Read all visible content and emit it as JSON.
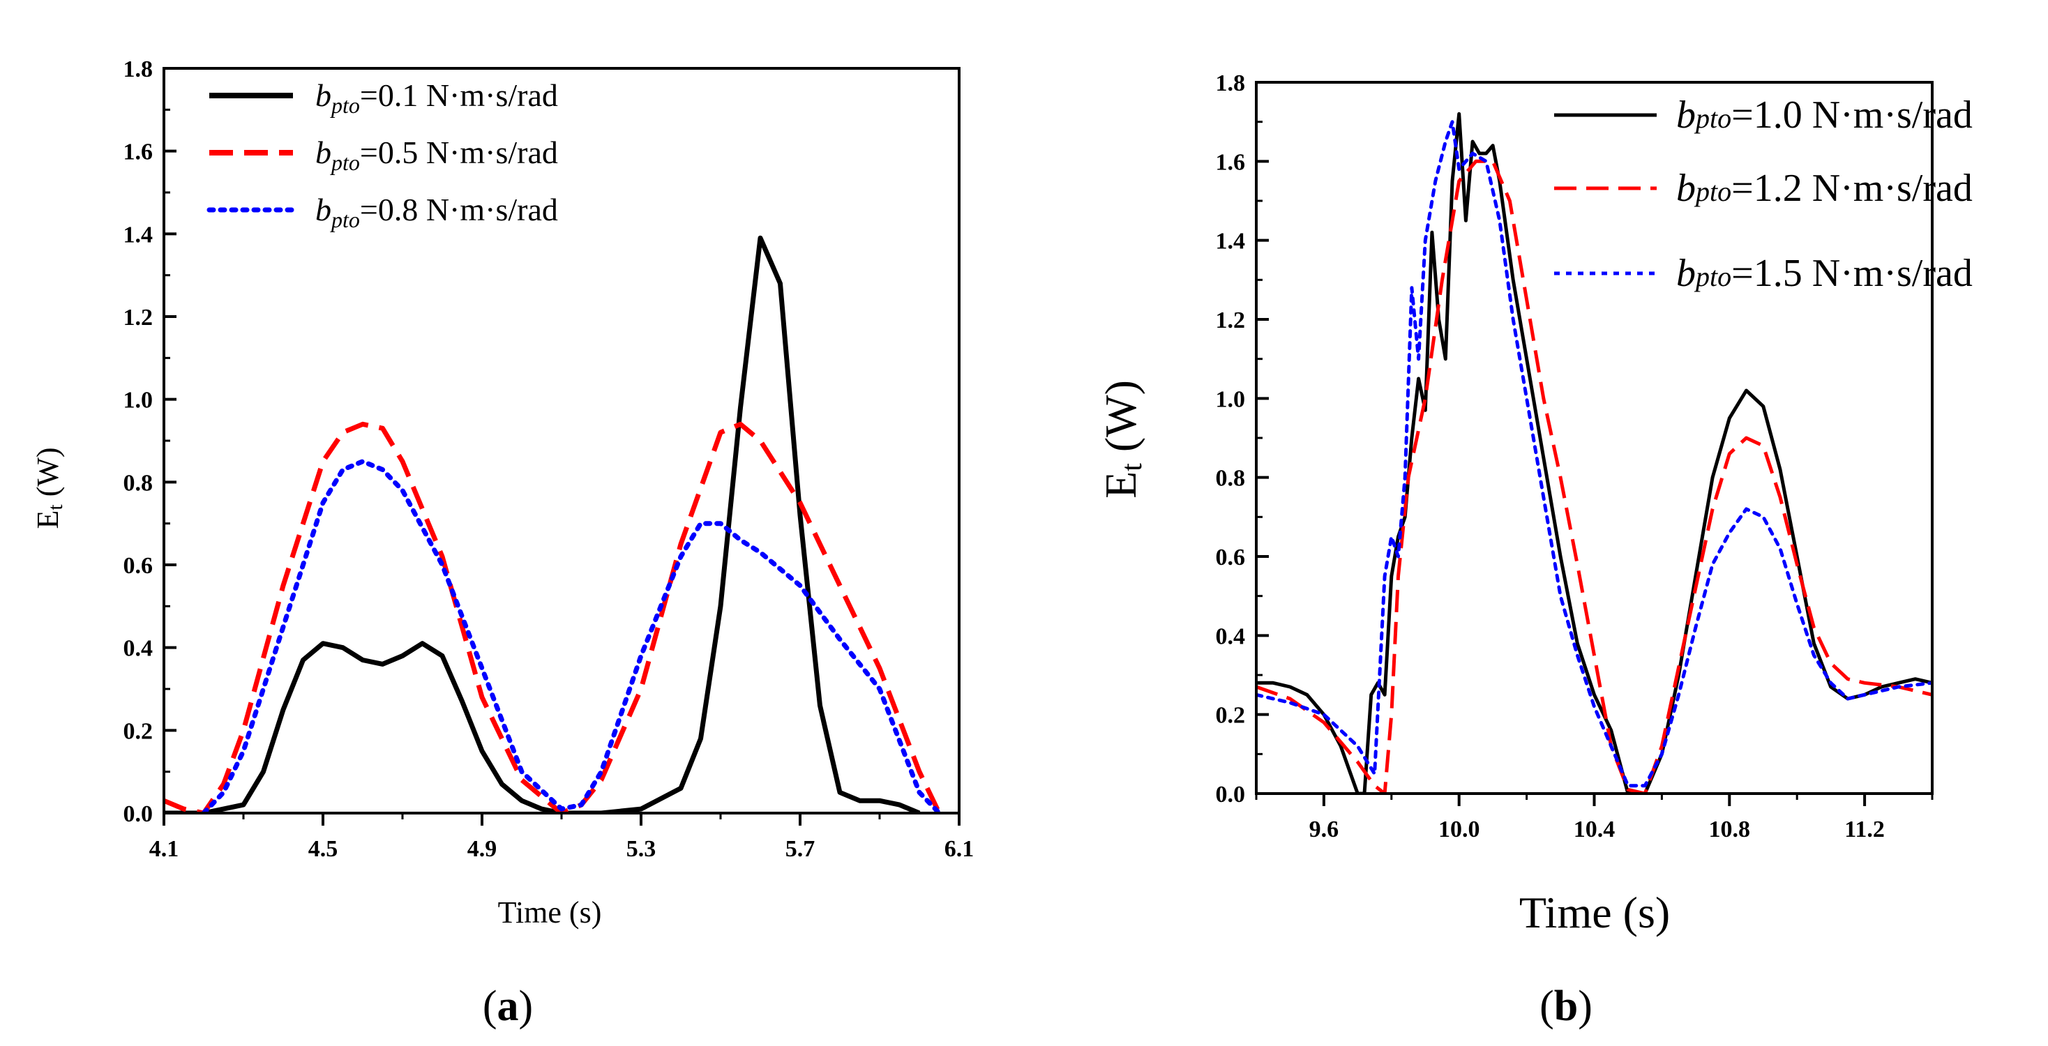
{
  "chart_data": [
    {
      "type": "line",
      "panel_label": "a",
      "xlabel": "Time (s)",
      "ylabel": "Et (W)",
      "ylabel_main": "E",
      "ylabel_sub": "t",
      "ylabel_rest": " (W)",
      "xlim": [
        4.1,
        6.1
      ],
      "ylim": [
        0,
        1.8
      ],
      "xticks": [
        4.1,
        4.5,
        4.9,
        5.3,
        5.7,
        6.1
      ],
      "xtick_labels": [
        "4.1",
        "4.5",
        "4.9",
        "5.3",
        "5.7",
        "6.1"
      ],
      "yticks": [
        0,
        0.2,
        0.4,
        0.6,
        0.8,
        1.0,
        1.2,
        1.4,
        1.6,
        1.8
      ],
      "ytick_labels": [
        "0.0",
        "0.2",
        "0.4",
        "0.6",
        "0.8",
        "1.0",
        "1.2",
        "1.4",
        "1.6",
        "1.8"
      ],
      "grid": false,
      "legend_position": "top-left",
      "series": [
        {
          "name": "bpto=0.1 N·m·s/rad",
          "name_main": "b",
          "name_sub": "pto",
          "name_rest": "=0.1 N·m·s/rad",
          "color": "#000000",
          "style": "solid",
          "points": [
            [
              4.1,
              0.0
            ],
            [
              4.2,
              0.0
            ],
            [
              4.3,
              0.02
            ],
            [
              4.35,
              0.1
            ],
            [
              4.4,
              0.25
            ],
            [
              4.45,
              0.37
            ],
            [
              4.5,
              0.41
            ],
            [
              4.55,
              0.4
            ],
            [
              4.6,
              0.37
            ],
            [
              4.65,
              0.36
            ],
            [
              4.7,
              0.38
            ],
            [
              4.75,
              0.41
            ],
            [
              4.8,
              0.38
            ],
            [
              4.85,
              0.27
            ],
            [
              4.9,
              0.15
            ],
            [
              4.95,
              0.07
            ],
            [
              5.0,
              0.03
            ],
            [
              5.05,
              0.01
            ],
            [
              5.1,
              0.0
            ],
            [
              5.2,
              0.0
            ],
            [
              5.3,
              0.01
            ],
            [
              5.4,
              0.06
            ],
            [
              5.45,
              0.18
            ],
            [
              5.5,
              0.5
            ],
            [
              5.55,
              0.98
            ],
            [
              5.6,
              1.39
            ],
            [
              5.65,
              1.28
            ],
            [
              5.7,
              0.72
            ],
            [
              5.75,
              0.26
            ],
            [
              5.8,
              0.05
            ],
            [
              5.85,
              0.03
            ],
            [
              5.9,
              0.03
            ],
            [
              5.95,
              0.02
            ],
            [
              6.0,
              0.0
            ]
          ]
        },
        {
          "name": "bpto=0.5 N·m·s/rad",
          "name_main": "b",
          "name_sub": "pto",
          "name_rest": "=0.5 N·m·s/rad",
          "color": "#ff0000",
          "style": "dashed",
          "points": [
            [
              4.1,
              0.03
            ],
            [
              4.15,
              0.01
            ],
            [
              4.2,
              0.0
            ],
            [
              4.25,
              0.07
            ],
            [
              4.3,
              0.2
            ],
            [
              4.4,
              0.55
            ],
            [
              4.5,
              0.85
            ],
            [
              4.55,
              0.92
            ],
            [
              4.6,
              0.94
            ],
            [
              4.65,
              0.93
            ],
            [
              4.7,
              0.85
            ],
            [
              4.8,
              0.62
            ],
            [
              4.9,
              0.28
            ],
            [
              5.0,
              0.08
            ],
            [
              5.1,
              0.0
            ],
            [
              5.15,
              0.02
            ],
            [
              5.2,
              0.08
            ],
            [
              5.3,
              0.3
            ],
            [
              5.4,
              0.65
            ],
            [
              5.5,
              0.92
            ],
            [
              5.55,
              0.94
            ],
            [
              5.6,
              0.9
            ],
            [
              5.7,
              0.75
            ],
            [
              5.8,
              0.55
            ],
            [
              5.9,
              0.35
            ],
            [
              6.0,
              0.1
            ],
            [
              6.05,
              0.0
            ]
          ]
        },
        {
          "name": "bpto=0.8 N·m·s/rad",
          "name_main": "b",
          "name_sub": "pto",
          "name_rest": "=0.8 N·m·s/rad",
          "color": "#0000ff",
          "style": "dotted",
          "points": [
            [
              4.2,
              0.0
            ],
            [
              4.25,
              0.05
            ],
            [
              4.3,
              0.15
            ],
            [
              4.4,
              0.45
            ],
            [
              4.5,
              0.75
            ],
            [
              4.55,
              0.83
            ],
            [
              4.6,
              0.85
            ],
            [
              4.65,
              0.83
            ],
            [
              4.7,
              0.78
            ],
            [
              4.8,
              0.6
            ],
            [
              4.9,
              0.35
            ],
            [
              5.0,
              0.1
            ],
            [
              5.1,
              0.01
            ],
            [
              5.15,
              0.02
            ],
            [
              5.2,
              0.1
            ],
            [
              5.3,
              0.38
            ],
            [
              5.4,
              0.62
            ],
            [
              5.45,
              0.7
            ],
            [
              5.5,
              0.7
            ],
            [
              5.55,
              0.66
            ],
            [
              5.6,
              0.63
            ],
            [
              5.7,
              0.55
            ],
            [
              5.8,
              0.42
            ],
            [
              5.9,
              0.3
            ],
            [
              6.0,
              0.05
            ],
            [
              6.05,
              0.0
            ]
          ]
        }
      ]
    },
    {
      "type": "line",
      "panel_label": "b",
      "xlabel": "Time (s)",
      "ylabel": "Et (W)",
      "ylabel_main": "E",
      "ylabel_sub": "t",
      "ylabel_rest": " (W)",
      "xlim": [
        9.4,
        11.4
      ],
      "ylim": [
        0,
        1.8
      ],
      "xticks": [
        9.6,
        10.0,
        10.4,
        10.8,
        11.2
      ],
      "xtick_labels": [
        "9.6",
        "10.0",
        "10.4",
        "10.8",
        "11.2"
      ],
      "yticks": [
        0,
        0.2,
        0.4,
        0.6,
        0.8,
        1.0,
        1.2,
        1.4,
        1.6,
        1.8
      ],
      "ytick_labels": [
        "0.0",
        "0.2",
        "0.4",
        "0.6",
        "0.8",
        "1.0",
        "1.2",
        "1.4",
        "1.6",
        "1.8"
      ],
      "grid": false,
      "legend_position": "top-right",
      "series": [
        {
          "name": "bpto=1.0 N·m·s/rad",
          "name_main": "b",
          "name_sub": "pto",
          "name_rest": "=1.0 N·m·s/rad",
          "color": "#000000",
          "style": "solid",
          "points": [
            [
              9.4,
              0.28
            ],
            [
              9.45,
              0.28
            ],
            [
              9.5,
              0.27
            ],
            [
              9.55,
              0.25
            ],
            [
              9.6,
              0.2
            ],
            [
              9.65,
              0.12
            ],
            [
              9.7,
              0.0
            ],
            [
              9.72,
              0.0
            ],
            [
              9.74,
              0.25
            ],
            [
              9.76,
              0.28
            ],
            [
              9.78,
              0.25
            ],
            [
              9.8,
              0.55
            ],
            [
              9.82,
              0.65
            ],
            [
              9.84,
              0.7
            ],
            [
              9.86,
              0.9
            ],
            [
              9.88,
              1.05
            ],
            [
              9.9,
              0.97
            ],
            [
              9.92,
              1.42
            ],
            [
              9.94,
              1.2
            ],
            [
              9.96,
              1.1
            ],
            [
              9.98,
              1.55
            ],
            [
              10.0,
              1.72
            ],
            [
              10.02,
              1.45
            ],
            [
              10.04,
              1.65
            ],
            [
              10.06,
              1.62
            ],
            [
              10.08,
              1.62
            ],
            [
              10.1,
              1.64
            ],
            [
              10.12,
              1.55
            ],
            [
              10.16,
              1.3
            ],
            [
              10.2,
              1.1
            ],
            [
              10.25,
              0.85
            ],
            [
              10.3,
              0.6
            ],
            [
              10.35,
              0.38
            ],
            [
              10.4,
              0.25
            ],
            [
              10.45,
              0.16
            ],
            [
              10.5,
              0.0
            ],
            [
              10.55,
              0.0
            ],
            [
              10.6,
              0.1
            ],
            [
              10.65,
              0.3
            ],
            [
              10.7,
              0.55
            ],
            [
              10.75,
              0.8
            ],
            [
              10.8,
              0.95
            ],
            [
              10.85,
              1.02
            ],
            [
              10.9,
              0.98
            ],
            [
              10.95,
              0.82
            ],
            [
              11.0,
              0.6
            ],
            [
              11.05,
              0.38
            ],
            [
              11.1,
              0.27
            ],
            [
              11.15,
              0.24
            ],
            [
              11.2,
              0.25
            ],
            [
              11.25,
              0.27
            ],
            [
              11.3,
              0.28
            ],
            [
              11.35,
              0.29
            ],
            [
              11.4,
              0.28
            ]
          ]
        },
        {
          "name": "bpto=1.2 N·m·s/rad",
          "name_main": "b",
          "name_sub": "pto",
          "name_rest": "=1.2 N·m·s/rad",
          "color": "#ff0000",
          "style": "dashed",
          "points": [
            [
              9.4,
              0.27
            ],
            [
              9.5,
              0.24
            ],
            [
              9.6,
              0.18
            ],
            [
              9.65,
              0.13
            ],
            [
              9.7,
              0.08
            ],
            [
              9.75,
              0.02
            ],
            [
              9.78,
              0.0
            ],
            [
              9.8,
              0.2
            ],
            [
              9.82,
              0.55
            ],
            [
              9.85,
              0.8
            ],
            [
              9.9,
              1.0
            ],
            [
              9.95,
              1.3
            ],
            [
              10.0,
              1.55
            ],
            [
              10.05,
              1.6
            ],
            [
              10.1,
              1.6
            ],
            [
              10.15,
              1.5
            ],
            [
              10.2,
              1.25
            ],
            [
              10.25,
              1.0
            ],
            [
              10.3,
              0.8
            ],
            [
              10.35,
              0.58
            ],
            [
              10.4,
              0.35
            ],
            [
              10.45,
              0.12
            ],
            [
              10.5,
              0.01
            ],
            [
              10.55,
              0.0
            ],
            [
              10.6,
              0.12
            ],
            [
              10.65,
              0.32
            ],
            [
              10.7,
              0.52
            ],
            [
              10.75,
              0.72
            ],
            [
              10.8,
              0.86
            ],
            [
              10.85,
              0.9
            ],
            [
              10.9,
              0.88
            ],
            [
              10.95,
              0.75
            ],
            [
              11.0,
              0.58
            ],
            [
              11.05,
              0.42
            ],
            [
              11.1,
              0.33
            ],
            [
              11.15,
              0.29
            ],
            [
              11.2,
              0.28
            ],
            [
              11.3,
              0.27
            ],
            [
              11.4,
              0.25
            ]
          ]
        },
        {
          "name": "bpto=1.5 N·m·s/rad",
          "name_main": "b",
          "name_sub": "pto",
          "name_rest": "=1.5 N·m·s/rad",
          "color": "#0000ff",
          "style": "dotted",
          "points": [
            [
              9.4,
              0.25
            ],
            [
              9.5,
              0.23
            ],
            [
              9.6,
              0.2
            ],
            [
              9.65,
              0.16
            ],
            [
              9.7,
              0.12
            ],
            [
              9.75,
              0.05
            ],
            [
              9.78,
              0.55
            ],
            [
              9.8,
              0.65
            ],
            [
              9.82,
              0.6
            ],
            [
              9.84,
              0.8
            ],
            [
              9.86,
              1.28
            ],
            [
              9.88,
              1.1
            ],
            [
              9.9,
              1.4
            ],
            [
              9.93,
              1.55
            ],
            [
              9.96,
              1.65
            ],
            [
              9.98,
              1.7
            ],
            [
              10.0,
              1.58
            ],
            [
              10.04,
              1.62
            ],
            [
              10.08,
              1.6
            ],
            [
              10.12,
              1.45
            ],
            [
              10.16,
              1.2
            ],
            [
              10.2,
              1.0
            ],
            [
              10.25,
              0.75
            ],
            [
              10.3,
              0.5
            ],
            [
              10.35,
              0.35
            ],
            [
              10.4,
              0.22
            ],
            [
              10.45,
              0.12
            ],
            [
              10.5,
              0.02
            ],
            [
              10.55,
              0.02
            ],
            [
              10.6,
              0.1
            ],
            [
              10.65,
              0.25
            ],
            [
              10.7,
              0.42
            ],
            [
              10.75,
              0.58
            ],
            [
              10.8,
              0.66
            ],
            [
              10.85,
              0.72
            ],
            [
              10.9,
              0.7
            ],
            [
              10.95,
              0.62
            ],
            [
              11.0,
              0.48
            ],
            [
              11.05,
              0.35
            ],
            [
              11.1,
              0.28
            ],
            [
              11.15,
              0.24
            ],
            [
              11.2,
              0.25
            ],
            [
              11.3,
              0.27
            ],
            [
              11.4,
              0.28
            ]
          ]
        }
      ]
    }
  ]
}
